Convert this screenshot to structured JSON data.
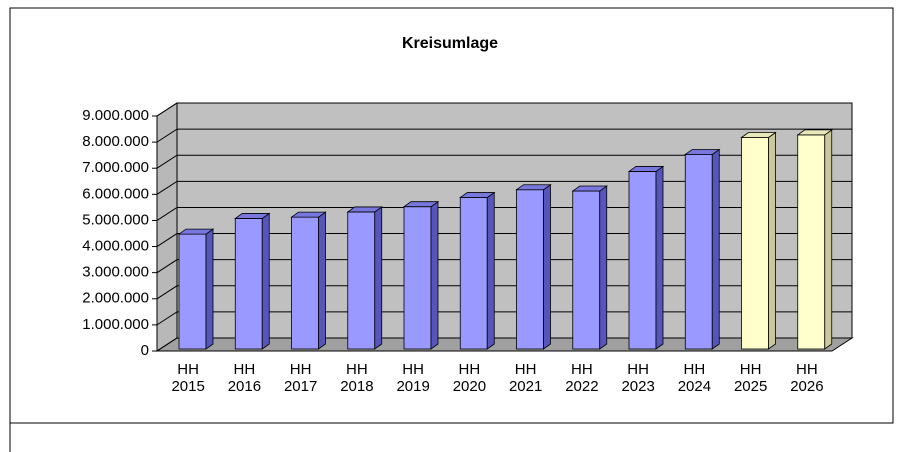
{
  "chart_data": {
    "type": "bar3d",
    "title": "Kreisumlage",
    "categories": [
      "HH 2015",
      "HH 2016",
      "HH 2017",
      "HH 2018",
      "HH 2019",
      "HH 2020",
      "HH 2021",
      "HH 2022",
      "HH 2023",
      "HH 2024",
      "HH 2025",
      "HH 2026"
    ],
    "values": [
      4400000,
      5000000,
      5050000,
      5250000,
      5450000,
      5800000,
      6100000,
      6050000,
      6800000,
      7450000,
      8100000,
      8200000
    ],
    "colors": [
      "#9999ff",
      "#9999ff",
      "#9999ff",
      "#9999ff",
      "#9999ff",
      "#9999ff",
      "#9999ff",
      "#9999ff",
      "#9999ff",
      "#9999ff",
      "#ffffcc",
      "#ffffcc"
    ],
    "ylim": [
      0,
      9000000
    ],
    "yticks": [
      0,
      {
        "value": 1000000,
        "label": "1.000.000"
      },
      {
        "value": 2000000,
        "label": "2.000.000"
      },
      {
        "value": 3000000,
        "label": "3.000.000"
      },
      {
        "value": 4000000,
        "label": "4.000.000"
      },
      {
        "value": 5000000,
        "label": "5.000.000"
      },
      {
        "value": 6000000,
        "label": "6.000.000"
      },
      {
        "value": 7000000,
        "label": "7.000.000"
      },
      {
        "value": 8000000,
        "label": "8.000.000"
      },
      {
        "value": 9000000,
        "label": "9.000.000"
      }
    ],
    "grid": true
  }
}
